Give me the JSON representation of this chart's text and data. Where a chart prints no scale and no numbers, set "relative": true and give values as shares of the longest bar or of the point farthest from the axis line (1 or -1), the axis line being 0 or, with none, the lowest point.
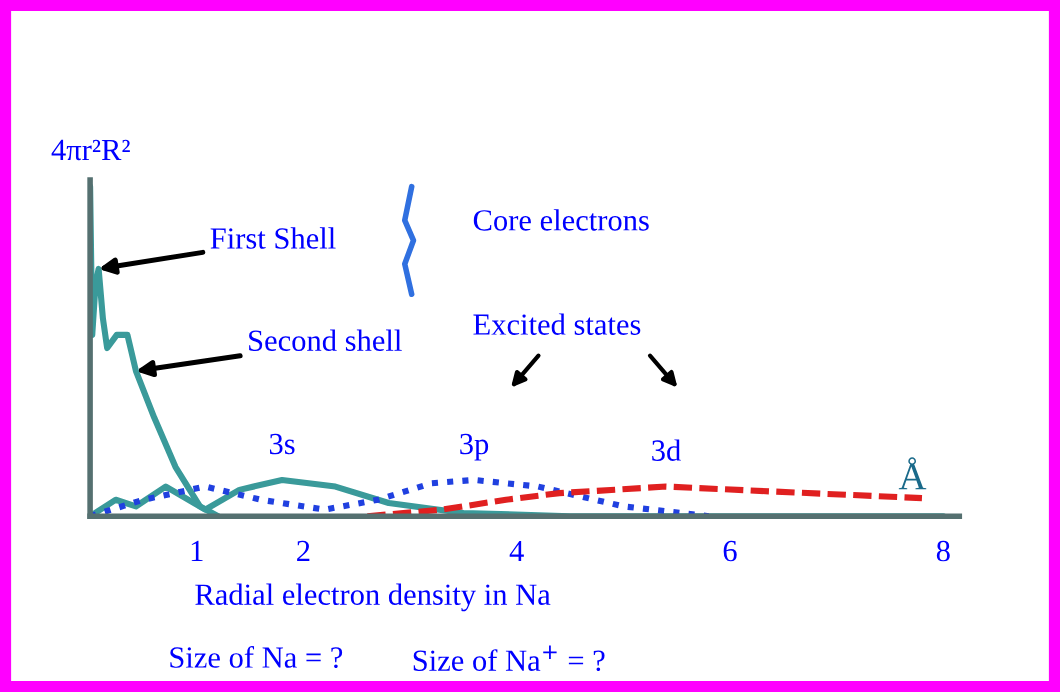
{
  "chart_data": {
    "type": "line",
    "relative": true,
    "xlabel": "Radial electron density in Na",
    "ylabel": "4πr²R²",
    "xlim": [
      0,
      8.15
    ],
    "xticks": [
      1,
      2,
      4,
      6,
      8
    ],
    "grid": false,
    "legend": false,
    "marker": "none",
    "series": [
      {
        "color": "#3a9a9a",
        "line_style": "solid",
        "x": [
          0,
          0.02,
          0.05,
          0.08,
          0.12,
          0.16,
          0.25,
          0.35,
          0.43,
          0.6,
          0.8,
          1.03,
          1.2
        ],
        "values": [
          1.0,
          0.55,
          0.7,
          0.75,
          0.6,
          0.51,
          0.55,
          0.55,
          0.44,
          0.3,
          0.15,
          0.03,
          0.0
        ]
      },
      {
        "name": "3s",
        "color": "#3a9a9a",
        "line_style": "solid",
        "x": [
          0,
          0.24,
          0.43,
          0.71,
          1.08,
          1.4,
          1.8,
          2.3,
          2.8,
          3.5,
          4.5,
          6,
          8
        ],
        "values": [
          0.0,
          0.05,
          0.03,
          0.09,
          0.02,
          0.08,
          0.11,
          0.09,
          0.04,
          0.01,
          0.0,
          0.0,
          0.0
        ]
      },
      {
        "name": "3p",
        "color": "#2040e0",
        "line_style": "dotted",
        "x": [
          0,
          0.5,
          1.08,
          1.6,
          2.2,
          2.7,
          3.2,
          3.6,
          4.2,
          5.0,
          5.8
        ],
        "values": [
          0.0,
          0.05,
          0.09,
          0.05,
          0.02,
          0.05,
          0.1,
          0.11,
          0.09,
          0.03,
          0.0
        ]
      },
      {
        "name": "3d",
        "color": "#e02020",
        "line_style": "dashed",
        "x": [
          2.6,
          3.3,
          3.9,
          4.4,
          5.4,
          6.4,
          7.8
        ],
        "values": [
          0.0,
          0.02,
          0.05,
          0.07,
          0.09,
          0.075,
          0.055
        ]
      }
    ],
    "annotations": [
      {
        "text": "First Shell",
        "x": 0.08,
        "y": 0.75
      },
      {
        "text": "Second shell",
        "x": 0.43,
        "y": 0.44
      },
      "Core electrons",
      "Excited states",
      "Å",
      "Size of Na = ?",
      "Size of Na$^{+}$ = ?"
    ]
  }
}
